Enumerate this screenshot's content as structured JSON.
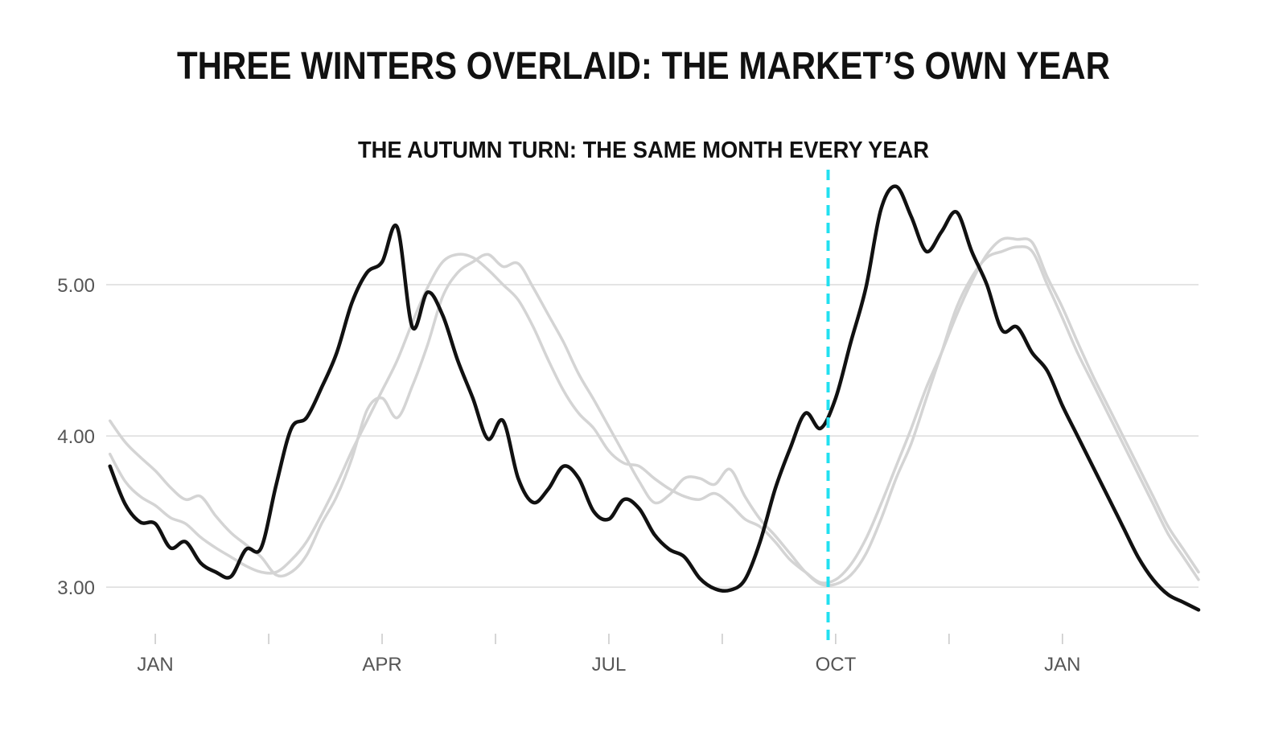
{
  "chart_data": {
    "type": "line",
    "title": "THREE WINTERS OVERLAID: THE MARKET’S OWN YEAR",
    "subtitle": "THE AUTUMN TURN: THE SAME MONTH EVERY YEAR",
    "xlabel": "",
    "ylabel": "",
    "x_unit": "months from January 1 (seasonal calendar)",
    "xlim": [
      -0.65,
      13.8
    ],
    "ylim": [
      2.65,
      5.75
    ],
    "yticks": [
      3.0,
      4.0,
      5.0
    ],
    "ytick_labels": [
      "3.00",
      "4.00",
      "5.00"
    ],
    "xticks_major": [
      {
        "x": 0,
        "label": "JAN"
      },
      {
        "x": 3,
        "label": "APR"
      },
      {
        "x": 6,
        "label": "JUL"
      },
      {
        "x": 9,
        "label": "OCT"
      },
      {
        "x": 12,
        "label": "JAN"
      }
    ],
    "xticks_minor": [
      1.5,
      4.5,
      7.5,
      10.5
    ],
    "grid": true,
    "annotation": {
      "type": "vertical-dashed-line",
      "x": 8.9,
      "color": "#22e0f0"
    },
    "colors": {
      "highlight": "#111111",
      "muted": "#d4d4d4",
      "grid": "#dcdcdc"
    },
    "series": [
      {
        "emphasis": "muted",
        "x": [
          -0.6,
          -0.4,
          -0.2,
          0,
          0.2,
          0.4,
          0.6,
          0.8,
          1,
          1.2,
          1.4,
          1.6,
          1.8,
          2,
          2.2,
          2.4,
          2.6,
          2.8,
          3,
          3.2,
          3.4,
          3.6,
          3.8,
          4,
          4.2,
          4.4,
          4.6,
          4.8,
          5,
          5.2,
          5.4,
          5.6,
          5.8,
          6,
          6.2,
          6.4,
          6.6,
          6.8,
          7,
          7.2,
          7.4,
          7.6,
          7.8,
          8,
          8.2,
          8.4,
          8.6,
          8.8,
          9,
          9.2,
          9.4,
          9.6,
          9.8,
          10,
          10.2,
          10.4,
          10.6,
          10.8,
          11,
          11.2,
          11.4,
          11.6,
          11.8,
          12,
          12.2,
          12.4,
          12.6,
          12.8,
          13,
          13.2,
          13.4,
          13.6,
          13.8
        ],
        "y": [
          4.1,
          3.96,
          3.86,
          3.77,
          3.66,
          3.58,
          3.6,
          3.47,
          3.36,
          3.28,
          3.2,
          3.08,
          3.1,
          3.21,
          3.42,
          3.6,
          3.85,
          4.17,
          4.25,
          4.12,
          4.33,
          4.6,
          4.92,
          5.08,
          5.15,
          5.2,
          5.12,
          5.14,
          4.98,
          4.8,
          4.62,
          4.41,
          4.24,
          4.06,
          3.88,
          3.7,
          3.56,
          3.61,
          3.72,
          3.72,
          3.68,
          3.78,
          3.6,
          3.45,
          3.34,
          3.22,
          3.1,
          3.02,
          3.02,
          3.08,
          3.22,
          3.45,
          3.72,
          3.95,
          4.25,
          4.55,
          4.85,
          5.05,
          5.18,
          5.22,
          5.25,
          5.22,
          5.0,
          4.78,
          4.55,
          4.35,
          4.15,
          3.95,
          3.75,
          3.55,
          3.35,
          3.2,
          3.05
        ]
      },
      {
        "emphasis": "muted",
        "x": [
          -0.6,
          -0.4,
          -0.2,
          0,
          0.2,
          0.4,
          0.6,
          0.8,
          1,
          1.2,
          1.4,
          1.6,
          1.8,
          2,
          2.2,
          2.4,
          2.6,
          2.8,
          3,
          3.2,
          3.4,
          3.6,
          3.8,
          4,
          4.2,
          4.4,
          4.6,
          4.8,
          5,
          5.2,
          5.4,
          5.6,
          5.8,
          6,
          6.2,
          6.4,
          6.6,
          6.8,
          7,
          7.2,
          7.4,
          7.6,
          7.8,
          8,
          8.2,
          8.4,
          8.6,
          8.8,
          9,
          9.2,
          9.4,
          9.6,
          9.8,
          10,
          10.2,
          10.4,
          10.6,
          10.8,
          11,
          11.2,
          11.4,
          11.6,
          11.8,
          12,
          12.2,
          12.4,
          12.6,
          12.8,
          13,
          13.2,
          13.4,
          13.6,
          13.8
        ],
        "y": [
          3.88,
          3.7,
          3.6,
          3.54,
          3.46,
          3.42,
          3.33,
          3.26,
          3.2,
          3.14,
          3.1,
          3.1,
          3.18,
          3.3,
          3.48,
          3.68,
          3.9,
          4.1,
          4.3,
          4.5,
          4.75,
          4.98,
          5.15,
          5.2,
          5.18,
          5.1,
          5.0,
          4.9,
          4.72,
          4.5,
          4.3,
          4.15,
          4.05,
          3.9,
          3.82,
          3.8,
          3.72,
          3.65,
          3.6,
          3.58,
          3.62,
          3.55,
          3.45,
          3.4,
          3.3,
          3.18,
          3.1,
          3.03,
          3.05,
          3.15,
          3.32,
          3.55,
          3.8,
          4.05,
          4.32,
          4.55,
          4.8,
          5.02,
          5.2,
          5.3,
          5.3,
          5.28,
          5.05,
          4.85,
          4.62,
          4.4,
          4.2,
          4.0,
          3.8,
          3.6,
          3.4,
          3.25,
          3.1
        ]
      },
      {
        "emphasis": "highlight",
        "x": [
          -0.6,
          -0.4,
          -0.2,
          0,
          0.2,
          0.4,
          0.6,
          0.8,
          1,
          1.2,
          1.4,
          1.6,
          1.8,
          2,
          2.2,
          2.4,
          2.6,
          2.8,
          3,
          3.2,
          3.4,
          3.6,
          3.8,
          4,
          4.2,
          4.4,
          4.6,
          4.8,
          5,
          5.2,
          5.4,
          5.6,
          5.8,
          6,
          6.2,
          6.4,
          6.6,
          6.8,
          7,
          7.2,
          7.4,
          7.6,
          7.8,
          8,
          8.2,
          8.4,
          8.6,
          8.8,
          9,
          9.2,
          9.4,
          9.6,
          9.8,
          10,
          10.2,
          10.4,
          10.6,
          10.8,
          11,
          11.2,
          11.4,
          11.6,
          11.8,
          12,
          12.2,
          12.4,
          12.6,
          12.8,
          13,
          13.2,
          13.4,
          13.6,
          13.8
        ],
        "y": [
          3.8,
          3.55,
          3.43,
          3.42,
          3.26,
          3.3,
          3.16,
          3.1,
          3.07,
          3.25,
          3.26,
          3.68,
          4.05,
          4.12,
          4.32,
          4.55,
          4.88,
          5.08,
          5.15,
          5.38,
          4.72,
          4.95,
          4.8,
          4.5,
          4.25,
          3.98,
          4.1,
          3.72,
          3.56,
          3.65,
          3.8,
          3.72,
          3.5,
          3.45,
          3.58,
          3.52,
          3.35,
          3.25,
          3.2,
          3.06,
          2.99,
          2.98,
          3.05,
          3.3,
          3.65,
          3.92,
          4.15,
          4.05,
          4.25,
          4.62,
          4.98,
          5.5,
          5.65,
          5.45,
          5.22,
          5.35,
          5.48,
          5.22,
          5.0,
          4.7,
          4.72,
          4.55,
          4.43,
          4.2,
          4.0,
          3.8,
          3.6,
          3.4,
          3.2,
          3.05,
          2.95,
          2.9,
          2.85
        ]
      }
    ]
  }
}
